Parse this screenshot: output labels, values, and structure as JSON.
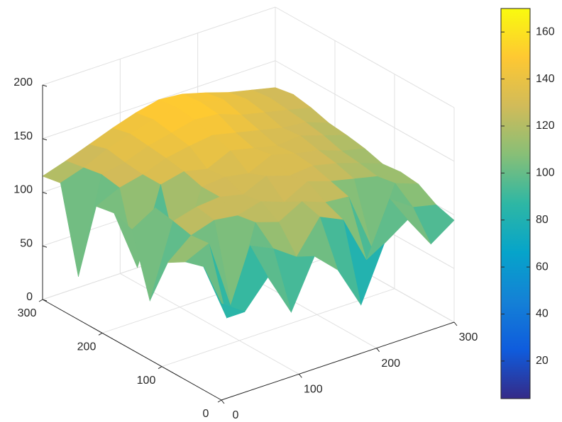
{
  "chart_data": {
    "type": "surface",
    "x": [
      0,
      30,
      60,
      90,
      120,
      150,
      180,
      210,
      240,
      270,
      300
    ],
    "y": [
      0,
      30,
      60,
      90,
      120,
      150,
      180,
      210,
      240,
      270,
      300
    ],
    "z": [
      [
        90,
        75,
        100,
        60,
        105,
        85,
        45,
        95,
        110,
        80,
        95
      ],
      [
        115,
        60,
        120,
        110,
        95,
        125,
        115,
        70,
        120,
        105,
        100
      ],
      [
        110,
        120,
        50,
        125,
        118,
        130,
        122,
        120,
        65,
        118,
        110
      ],
      [
        100,
        118,
        125,
        122,
        128,
        120,
        132,
        125,
        120,
        115,
        112
      ],
      [
        55,
        122,
        128,
        130,
        125,
        135,
        128,
        130,
        125,
        118,
        110
      ],
      [
        112,
        125,
        70,
        130,
        132,
        128,
        138,
        132,
        128,
        120,
        115
      ],
      [
        118,
        60,
        130,
        135,
        130,
        140,
        135,
        130,
        132,
        125,
        118
      ],
      [
        115,
        125,
        130,
        138,
        142,
        145,
        140,
        135,
        130,
        128,
        120
      ],
      [
        40,
        128,
        132,
        140,
        145,
        150,
        148,
        140,
        135,
        130,
        125
      ],
      [
        118,
        125,
        135,
        142,
        148,
        152,
        150,
        145,
        138,
        132,
        128
      ],
      [
        115,
        122,
        130,
        138,
        145,
        150,
        148,
        142,
        135,
        130,
        125
      ]
    ],
    "xlim": [
      0,
      300
    ],
    "xticks": [
      0,
      100,
      200,
      300
    ],
    "ylim": [
      0,
      300
    ],
    "yticks": [
      0,
      100,
      200,
      300
    ],
    "zlim": [
      0,
      200
    ],
    "zticks": [
      0,
      50,
      100,
      150,
      200
    ],
    "clim": [
      4,
      170
    ],
    "cticks": [
      20,
      40,
      60,
      80,
      100,
      120,
      140,
      160
    ],
    "colormap": [
      "#352a87",
      "#0f5cdd",
      "#1481d6",
      "#06a4ca",
      "#2eb7a4",
      "#87bf77",
      "#d1bb59",
      "#fec832",
      "#f9fb0e"
    ],
    "grid": true,
    "colorbar": true
  }
}
